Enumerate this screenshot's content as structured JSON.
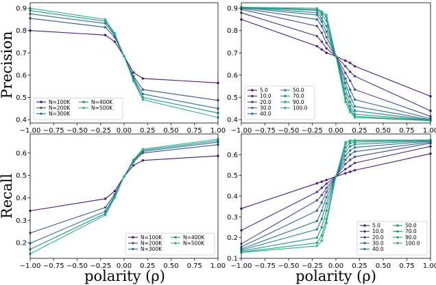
{
  "chart_data": [
    {
      "type": "line",
      "ylabel": "Precision",
      "xlabel": "",
      "xlim": [
        -1.0,
        1.0
      ],
      "ylim": [
        0.385,
        0.925
      ],
      "xticks": [
        "−1.00",
        "−0.75",
        "−0.50",
        "−0.25",
        "0.00",
        "0.25",
        "0.50",
        "0.75",
        "1.00"
      ],
      "yticks": [
        "0.4",
        "0.5",
        "0.6",
        "0.7",
        "0.8",
        "0.9"
      ],
      "legend_position": "lower-left",
      "legend_cols": 2,
      "x": [
        -1.0,
        -0.2,
        -0.1,
        0.0,
        0.1,
        0.2,
        1.0
      ],
      "series": [
        {
          "name": "N=100K",
          "color": "#45166f",
          "values": [
            0.8,
            0.78,
            0.75,
            0.685,
            0.612,
            0.585,
            0.565
          ]
        },
        {
          "name": "N=200K",
          "color": "#3a5288",
          "values": [
            0.855,
            0.815,
            0.77,
            0.685,
            0.595,
            0.535,
            0.487
          ]
        },
        {
          "name": "N=300K",
          "color": "#2c6e8e",
          "values": [
            0.875,
            0.832,
            0.778,
            0.685,
            0.587,
            0.515,
            0.45
          ]
        },
        {
          "name": "N=400K",
          "color": "#23908b",
          "values": [
            0.89,
            0.842,
            0.783,
            0.685,
            0.58,
            0.5,
            0.43
          ]
        },
        {
          "name": "N=500K",
          "color": "#2bb08a",
          "values": [
            0.9,
            0.85,
            0.788,
            0.685,
            0.573,
            0.49,
            0.41
          ]
        }
      ]
    },
    {
      "type": "line",
      "ylabel": "",
      "xlabel": "",
      "xlim": [
        -1.0,
        1.0
      ],
      "ylim": [
        0.385,
        0.925
      ],
      "xticks": [
        "−1.00",
        "−0.75",
        "−0.50",
        "−0.25",
        "0.00",
        "0.25",
        "0.50",
        "0.75",
        "1.00"
      ],
      "yticks": [
        "0.4",
        "0.5",
        "0.6",
        "0.7",
        "0.8",
        "0.9"
      ],
      "legend_position": "lower-left",
      "legend_cols": 2,
      "x": [
        -1.0,
        -0.2,
        -0.15,
        -0.1,
        0.0,
        0.1,
        0.15,
        0.2,
        1.0
      ],
      "series": [
        {
          "name": "5.0",
          "color": "#45166f",
          "values": [
            0.85,
            0.73,
            0.715,
            0.7,
            0.685,
            0.665,
            0.655,
            0.64,
            0.505
          ]
        },
        {
          "name": "10.0",
          "color": "#482f7b",
          "values": [
            0.88,
            0.775,
            0.75,
            0.72,
            0.685,
            0.64,
            0.615,
            0.595,
            0.44
          ]
        },
        {
          "name": "20.0",
          "color": "#3f4b89",
          "values": [
            0.895,
            0.82,
            0.79,
            0.745,
            0.685,
            0.61,
            0.575,
            0.535,
            0.415
          ]
        },
        {
          "name": "30.0",
          "color": "#35618d",
          "values": [
            0.9,
            0.85,
            0.82,
            0.77,
            0.685,
            0.585,
            0.535,
            0.49,
            0.405
          ]
        },
        {
          "name": "40.0",
          "color": "#2e738e",
          "values": [
            0.903,
            0.87,
            0.84,
            0.795,
            0.685,
            0.565,
            0.505,
            0.46,
            0.4
          ]
        },
        {
          "name": "50.0",
          "color": "#27848e",
          "values": [
            0.905,
            0.88,
            0.855,
            0.82,
            0.685,
            0.54,
            0.48,
            0.44,
            0.398
          ]
        },
        {
          "name": "70.0",
          "color": "#21938c",
          "values": [
            0.905,
            0.89,
            0.87,
            0.845,
            0.685,
            0.515,
            0.46,
            0.425,
            0.397
          ]
        },
        {
          "name": "90.0",
          "color": "#22a287",
          "values": [
            0.905,
            0.895,
            0.88,
            0.86,
            0.685,
            0.495,
            0.445,
            0.415,
            0.396
          ]
        },
        {
          "name": "100.0",
          "color": "#2db27d",
          "values": [
            0.905,
            0.9,
            0.885,
            0.87,
            0.685,
            0.48,
            0.435,
            0.41,
            0.395
          ]
        }
      ]
    },
    {
      "type": "line",
      "ylabel": "Recall",
      "xlabel": "polarity (ρ)",
      "xlim": [
        -1.0,
        1.0
      ],
      "ylim": [
        0.13,
        0.685
      ],
      "xticks": [
        "−1.00",
        "−0.75",
        "−0.50",
        "−0.25",
        "0.00",
        "0.25",
        "0.50",
        "0.75",
        "1.00"
      ],
      "yticks": [
        "0.2",
        "0.3",
        "0.4",
        "0.5",
        "0.6"
      ],
      "legend_position": "lower-right",
      "legend_cols": 2,
      "x": [
        -1.0,
        -0.2,
        -0.1,
        0.0,
        0.1,
        0.2,
        1.0
      ],
      "series": [
        {
          "name": "N=100K",
          "color": "#45166f",
          "values": [
            0.342,
            0.396,
            0.43,
            0.495,
            0.545,
            0.567,
            0.587
          ]
        },
        {
          "name": "N=200K",
          "color": "#3a5288",
          "values": [
            0.243,
            0.357,
            0.415,
            0.495,
            0.56,
            0.6,
            0.637
          ]
        },
        {
          "name": "N=300K",
          "color": "#2c6e8e",
          "values": [
            0.197,
            0.34,
            0.408,
            0.495,
            0.565,
            0.607,
            0.648
          ]
        },
        {
          "name": "N=400K",
          "color": "#23908b",
          "values": [
            0.17,
            0.33,
            0.404,
            0.495,
            0.568,
            0.612,
            0.655
          ]
        },
        {
          "name": "N=500K",
          "color": "#2bb08a",
          "values": [
            0.15,
            0.323,
            0.4,
            0.495,
            0.57,
            0.617,
            0.662
          ]
        }
      ]
    },
    {
      "type": "line",
      "ylabel": "",
      "xlabel": "polarity (ρ)",
      "xlim": [
        -1.0,
        1.0
      ],
      "ylim": [
        0.1,
        0.7
      ],
      "xticks": [
        "−1.00",
        "−0.75",
        "−0.50",
        "−0.25",
        "0.00",
        "0.25",
        "0.50",
        "0.75",
        "1.00"
      ],
      "yticks": [
        "0.1",
        "0.2",
        "0.3",
        "0.4",
        "0.5",
        "0.6"
      ],
      "legend_position": "lower-right",
      "legend_cols": 2,
      "x": [
        -1.0,
        -0.2,
        -0.15,
        -0.1,
        0.0,
        0.1,
        0.15,
        0.2,
        1.0
      ],
      "series": [
        {
          "name": "5.0",
          "color": "#45166f",
          "values": [
            0.34,
            0.462,
            0.47,
            0.478,
            0.495,
            0.51,
            0.518,
            0.525,
            0.605
          ]
        },
        {
          "name": "10.0",
          "color": "#482f7b",
          "values": [
            0.235,
            0.42,
            0.44,
            0.46,
            0.495,
            0.53,
            0.545,
            0.56,
            0.64
          ]
        },
        {
          "name": "20.0",
          "color": "#3f4b89",
          "values": [
            0.17,
            0.38,
            0.405,
            0.44,
            0.495,
            0.555,
            0.575,
            0.59,
            0.655
          ]
        },
        {
          "name": "30.0",
          "color": "#35618d",
          "values": [
            0.155,
            0.33,
            0.37,
            0.42,
            0.495,
            0.575,
            0.6,
            0.615,
            0.66
          ]
        },
        {
          "name": "40.0",
          "color": "#2e738e",
          "values": [
            0.145,
            0.28,
            0.33,
            0.395,
            0.495,
            0.595,
            0.62,
            0.635,
            0.665
          ]
        },
        {
          "name": "50.0",
          "color": "#27848e",
          "values": [
            0.14,
            0.24,
            0.29,
            0.365,
            0.495,
            0.615,
            0.64,
            0.65,
            0.668
          ]
        },
        {
          "name": "70.0",
          "color": "#21938c",
          "values": [
            0.135,
            0.2,
            0.25,
            0.33,
            0.495,
            0.635,
            0.655,
            0.66,
            0.67
          ]
        },
        {
          "name": "90.0",
          "color": "#22a287",
          "values": [
            0.13,
            0.175,
            0.21,
            0.29,
            0.495,
            0.65,
            0.665,
            0.667,
            0.67
          ]
        },
        {
          "name": "100.0",
          "color": "#2db27d",
          "values": [
            0.128,
            0.16,
            0.185,
            0.27,
            0.495,
            0.66,
            0.668,
            0.67,
            0.671
          ]
        }
      ]
    }
  ]
}
